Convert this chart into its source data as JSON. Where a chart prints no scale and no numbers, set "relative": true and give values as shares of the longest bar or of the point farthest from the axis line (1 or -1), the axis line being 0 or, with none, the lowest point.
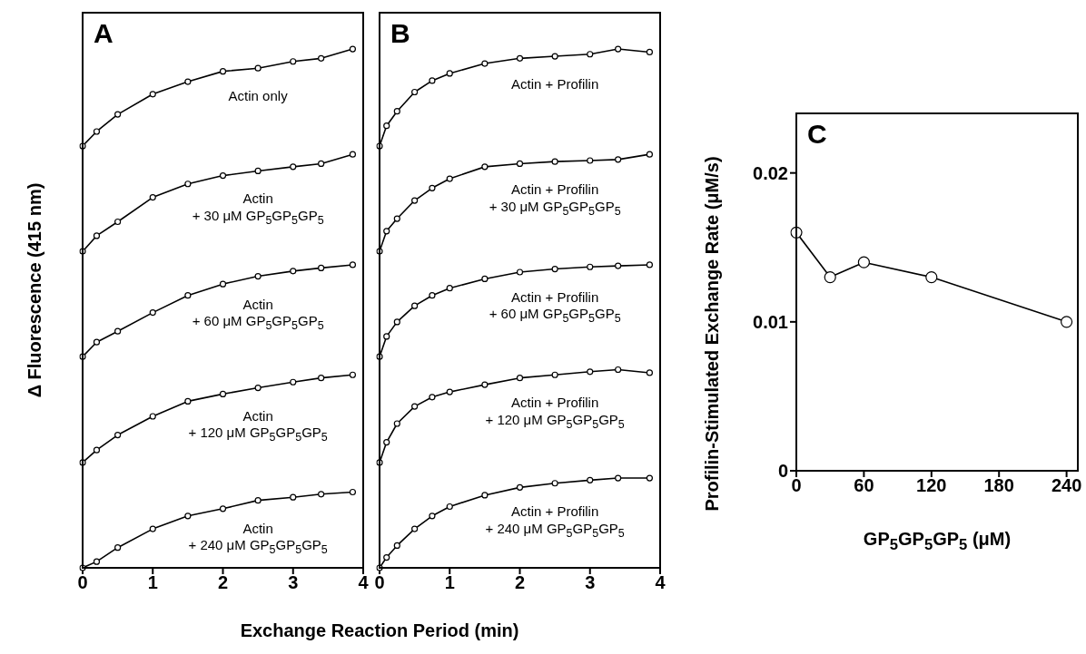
{
  "chart_data": [
    {
      "type": "line",
      "title": "A",
      "xlabel": "Exchange Reaction Period (min)",
      "ylabel": "Δ Fluorescence (415 nm)",
      "relative": true,
      "marker": "circle",
      "xlim": [
        0,
        4
      ],
      "xticks": [
        0,
        1,
        2,
        3,
        4
      ],
      "x": [
        0,
        0.2,
        0.5,
        1,
        1.5,
        2,
        2.5,
        3,
        3.4,
        3.85
      ],
      "series": [
        {
          "name": "Actin only",
          "color": "#000000",
          "values": [
            0.813,
            0.841,
            0.874,
            0.913,
            0.937,
            0.957,
            0.963,
            0.976,
            0.982,
            1.0
          ]
        },
        {
          "name": "Actin\n+ 30 μM GP$_{5}$GP$_{5}$GP$_{5}$",
          "color": "#000000",
          "values": [
            0.61,
            0.64,
            0.667,
            0.714,
            0.74,
            0.756,
            0.765,
            0.773,
            0.779,
            0.797
          ]
        },
        {
          "name": "Actin\n+ 60 μM GP$_{5}$GP$_{5}$GP$_{5}$",
          "color": "#000000",
          "values": [
            0.407,
            0.435,
            0.456,
            0.492,
            0.525,
            0.547,
            0.562,
            0.572,
            0.578,
            0.584
          ]
        },
        {
          "name": "Actin\n+ 120 μM GP$_{5}$GP$_{5}$GP$_{5}$",
          "color": "#000000",
          "values": [
            0.203,
            0.227,
            0.256,
            0.292,
            0.321,
            0.335,
            0.347,
            0.358,
            0.366,
            0.372
          ]
        },
        {
          "name": "Actin\n+ 240 μM GP$_{5}$GP$_{5}$GP$_{5}$",
          "color": "#000000",
          "values": [
            0,
            0.012,
            0.039,
            0.075,
            0.1,
            0.114,
            0.13,
            0.136,
            0.142,
            0.146
          ]
        }
      ]
    },
    {
      "type": "line",
      "title": "B",
      "relative": true,
      "marker": "circle",
      "xlim": [
        0,
        4
      ],
      "xticks": [
        0,
        1,
        2,
        3,
        4
      ],
      "x": [
        0,
        0.1,
        0.25,
        0.5,
        0.75,
        1,
        1.5,
        2,
        2.5,
        3,
        3.4,
        3.85
      ],
      "series": [
        {
          "name": "Actin + Profilin",
          "color": "#000000",
          "values": [
            0.813,
            0.852,
            0.88,
            0.917,
            0.939,
            0.953,
            0.972,
            0.982,
            0.986,
            0.99,
            1.0,
            0.994
          ]
        },
        {
          "name": "Actin + Profilin\n+ 30 μM GP$_{5}$GP$_{5}$GP$_{5}$",
          "color": "#000000",
          "values": [
            0.61,
            0.649,
            0.673,
            0.708,
            0.732,
            0.75,
            0.773,
            0.779,
            0.783,
            0.785,
            0.787,
            0.797
          ]
        },
        {
          "name": "Actin + Profilin\n+ 60 μM GP$_{5}$GP$_{5}$GP$_{5}$",
          "color": "#000000",
          "values": [
            0.407,
            0.446,
            0.474,
            0.505,
            0.525,
            0.539,
            0.557,
            0.57,
            0.576,
            0.58,
            0.582,
            0.584
          ]
        },
        {
          "name": "Actin + Profilin\n+ 120 μM GP$_{5}$GP$_{5}$GP$_{5}$",
          "color": "#000000",
          "values": [
            0.203,
            0.242,
            0.278,
            0.311,
            0.329,
            0.339,
            0.353,
            0.366,
            0.372,
            0.378,
            0.382,
            0.376
          ]
        },
        {
          "name": "Actin + Profilin\n+ 240 μM GP$_{5}$GP$_{5}$GP$_{5}$",
          "color": "#000000",
          "values": [
            0,
            0.02,
            0.043,
            0.075,
            0.1,
            0.118,
            0.14,
            0.155,
            0.163,
            0.169,
            0.173,
            0.173
          ]
        }
      ]
    },
    {
      "type": "line",
      "title": "C",
      "xlabel": "GP$_{5}$GP$_{5}$GP$_{5}$ (μM)",
      "ylabel": "Profilin-Stimulated Exchange Rate (μM/s)",
      "marker": "circle",
      "color": "#000000",
      "x": [
        0,
        30,
        60,
        120,
        240
      ],
      "values": [
        0.016,
        0.013,
        0.014,
        0.013,
        0.01
      ],
      "xlim": [
        0,
        250
      ],
      "xticks": [
        0,
        60,
        120,
        180,
        240
      ],
      "ylim": [
        0,
        0.024
      ],
      "yticks": [
        0,
        0.01,
        0.02
      ]
    }
  ]
}
